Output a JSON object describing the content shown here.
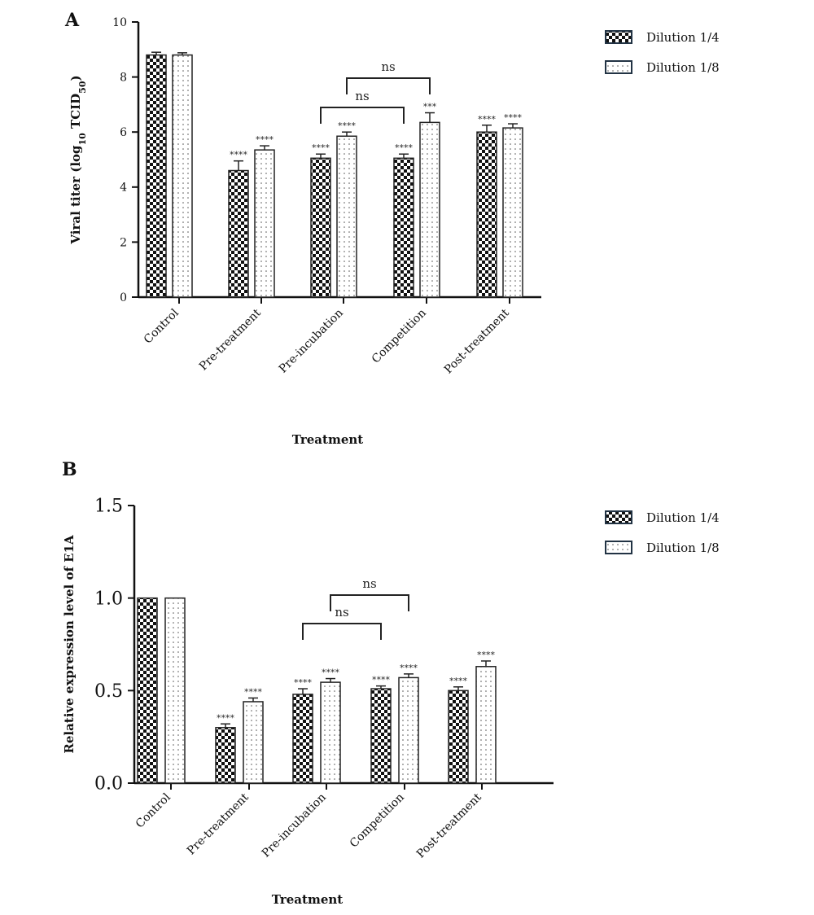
{
  "chart_data": [
    {
      "panel": "A",
      "type": "bar",
      "title": "",
      "xlabel": "Treatment",
      "ylabel": "Viral titer (log10 TCID50)",
      "ylabel_parts": {
        "pre": "Viral titer (log",
        "sub1": "10",
        "mid": " TCID",
        "sub2": "50",
        "post": ")"
      },
      "ylim": [
        0,
        10
      ],
      "yticks": [
        0,
        2,
        4,
        6,
        8,
        10
      ],
      "ytick_labels": [
        "0",
        "2",
        "4",
        "6",
        "8",
        "10"
      ],
      "grid": false,
      "legend": "top-right",
      "categories": [
        "Control",
        "Pre-treatment",
        "Pre-incubation",
        "Competition",
        "Post-treatment"
      ],
      "series": [
        {
          "name": "Dilution 1/4",
          "pattern": "checkerboard",
          "values": [
            8.8,
            4.6,
            5.05,
            5.05,
            6.0
          ],
          "errors": [
            0.1,
            0.35,
            0.15,
            0.15,
            0.25
          ],
          "significance": [
            "",
            "****",
            "****",
            "****",
            "****"
          ]
        },
        {
          "name": "Dilution 1/8",
          "pattern": "dotted",
          "values": [
            8.8,
            5.35,
            5.85,
            6.35,
            6.15
          ],
          "errors": [
            0.08,
            0.15,
            0.15,
            0.35,
            0.15
          ],
          "significance": [
            "",
            "****",
            "****",
            "***",
            "****"
          ]
        }
      ],
      "comparisons": [
        {
          "from": {
            "category": 2,
            "series": 0
          },
          "to": {
            "category": 3,
            "series": 0
          },
          "label": "ns",
          "level": 1
        },
        {
          "from": {
            "category": 2,
            "series": 1
          },
          "to": {
            "category": 3,
            "series": 1
          },
          "label": "ns",
          "level": 2
        }
      ]
    },
    {
      "panel": "B",
      "type": "bar",
      "title": "",
      "xlabel": "Treatment",
      "ylabel": "Relative expression level of E1A",
      "ylim": [
        0,
        1.5
      ],
      "yticks": [
        0,
        0.5,
        1.0,
        1.5
      ],
      "ytick_labels": [
        "0.0",
        "0.5",
        "1.0",
        "1.5"
      ],
      "grid": false,
      "legend": "top-right",
      "categories": [
        "Control",
        "Pre-treatment",
        "Pre-incubation",
        "Competition",
        "Post-treatment"
      ],
      "series": [
        {
          "name": "Dilution 1/4",
          "pattern": "checkerboard",
          "values": [
            1.0,
            0.3,
            0.48,
            0.51,
            0.5
          ],
          "errors": [
            0,
            0.02,
            0.03,
            0.015,
            0.02
          ],
          "significance": [
            "",
            "****",
            "****",
            "****",
            "****"
          ]
        },
        {
          "name": "Dilution 1/8",
          "pattern": "dotted",
          "values": [
            1.0,
            0.44,
            0.545,
            0.57,
            0.63
          ],
          "errors": [
            0,
            0.02,
            0.02,
            0.02,
            0.03
          ],
          "significance": [
            "",
            "****",
            "****",
            "****",
            "****"
          ]
        }
      ],
      "comparisons": [
        {
          "from": {
            "category": 2,
            "series": 0
          },
          "to": {
            "category": 3,
            "series": 0
          },
          "label": "ns",
          "level": 1
        },
        {
          "from": {
            "category": 2,
            "series": 1
          },
          "to": {
            "category": 3,
            "series": 1
          },
          "label": "ns",
          "level": 2
        }
      ]
    }
  ]
}
